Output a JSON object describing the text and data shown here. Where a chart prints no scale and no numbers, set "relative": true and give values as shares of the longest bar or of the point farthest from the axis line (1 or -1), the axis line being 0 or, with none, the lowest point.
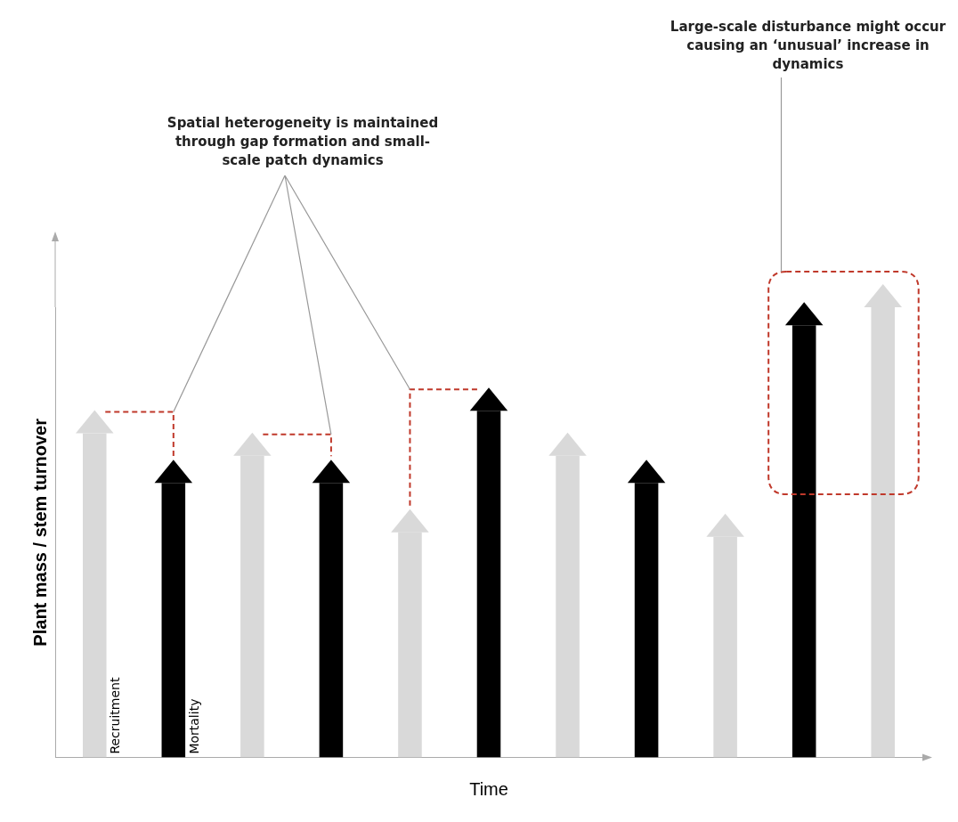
{
  "chart_data": {
    "type": "bar",
    "relative": true,
    "xlabel": "Time",
    "ylabel": "Plant mass / stem turnover",
    "categories": [
      null,
      null,
      null,
      null,
      null,
      null,
      null,
      null,
      null,
      null,
      null
    ],
    "values": [
      0.72,
      0.61,
      0.67,
      0.61,
      0.5,
      0.77,
      0.67,
      0.61,
      0.49,
      0.96,
      1
    ],
    "colors": [
      "#d9d9d9",
      "#000000",
      "#d9d9d9",
      "#000000",
      "#d9d9d9",
      "#000000",
      "#d9d9d9",
      "#000000",
      "#d9d9d9",
      "#000000",
      "#d9d9d9"
    ],
    "annotations": [
      "Spatial heterogeneity is maintained through gap formation and small-scale patch dynamics",
      "Large-scale disturbance might occur causing an ‘unusual’ increase in dynamics",
      "Recruitment",
      "Mortality"
    ]
  }
}
